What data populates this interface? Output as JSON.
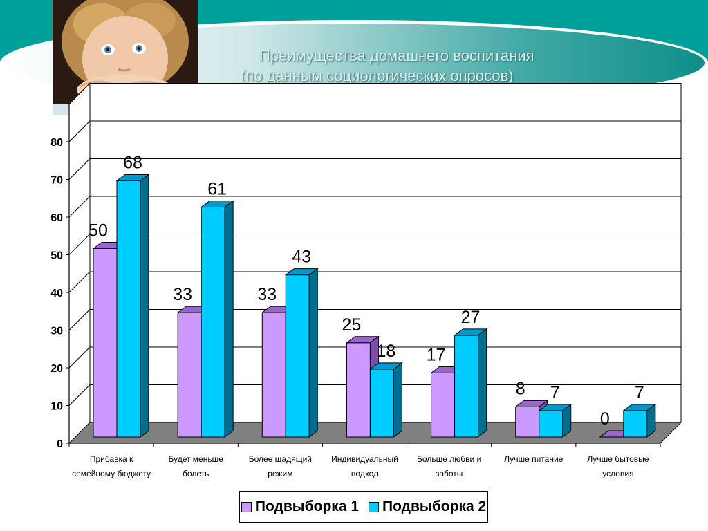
{
  "title": {
    "line1": "Преимущества  домашнего воспитания",
    "line2": "(по данным социологических опросов)"
  },
  "colors": {
    "series1_front": "#cc99ff",
    "series1_top": "#9966cc",
    "series1_side": "#7b4fa8",
    "series2_front": "#00ccff",
    "series2_top": "#0099cc",
    "series2_side": "#006f8f",
    "teal_header": "#00a8a0",
    "floor": "#808080"
  },
  "legend": {
    "items": [
      "Подвыборка 1",
      "Подвыборка 2"
    ]
  },
  "photo": {
    "icon": "child-photo"
  },
  "chart_data": {
    "type": "bar",
    "categories": [
      [
        "Прибавка к",
        "семейному бюджету"
      ],
      [
        "Будет меньше",
        "болеть"
      ],
      [
        "Более щадящий",
        "режим"
      ],
      [
        "Индивидуальный",
        "подход"
      ],
      [
        "Больше любви и",
        "заботы"
      ],
      [
        "Лучше питание"
      ],
      [
        "Лучше бытовые",
        "условия"
      ]
    ],
    "series": [
      {
        "name": "Подвыборка 1",
        "values": [
          50,
          33,
          33,
          25,
          17,
          8,
          0
        ]
      },
      {
        "name": "Подвыборка 2",
        "values": [
          68,
          61,
          43,
          18,
          27,
          7,
          7
        ]
      }
    ],
    "yticks": [
      0,
      10,
      20,
      30,
      40,
      50,
      60,
      70,
      80
    ],
    "ylim": [
      0,
      90
    ],
    "grid": true,
    "legend_position": "bottom",
    "title": "Преимущества  домашнего воспитания (по данным социологических опросов)"
  }
}
